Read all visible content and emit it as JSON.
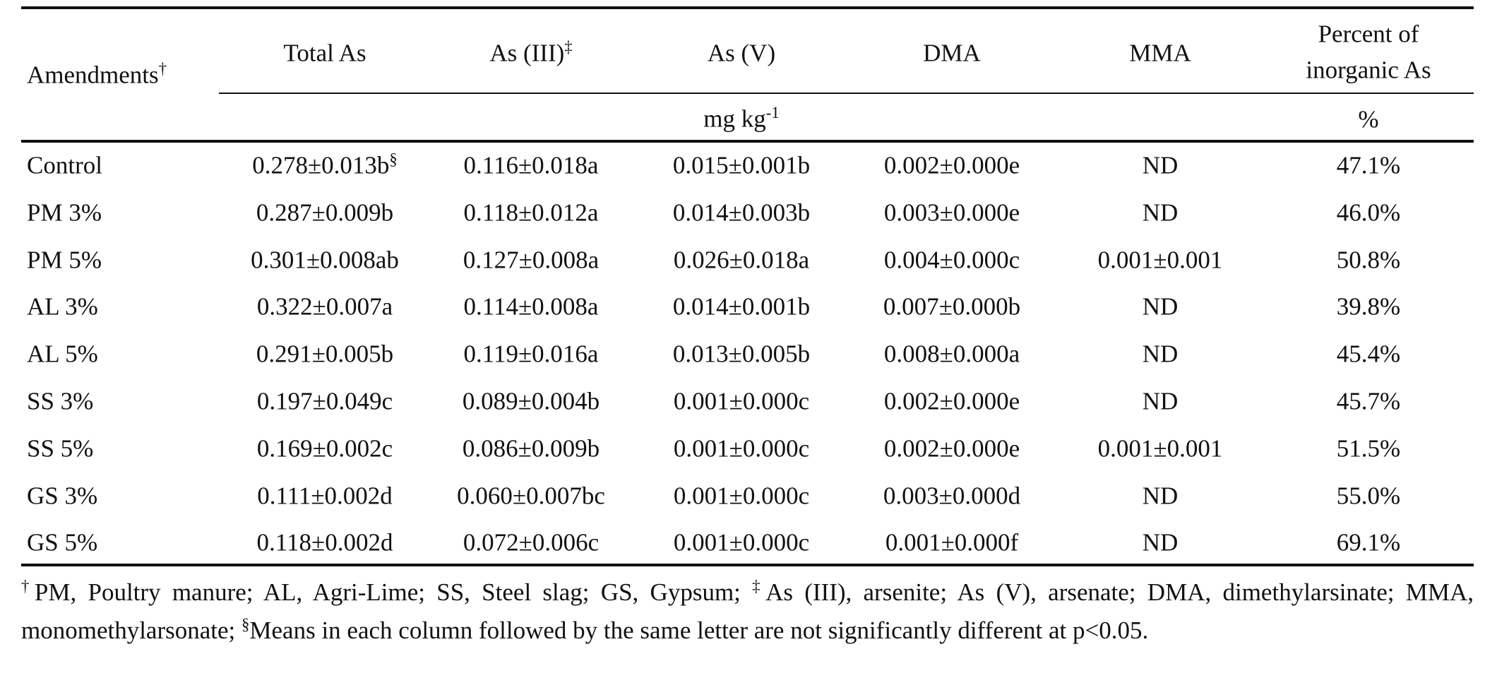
{
  "table": {
    "header": {
      "columns": [
        {
          "text": "Amendments",
          "sup": "†"
        },
        {
          "text": "Total As"
        },
        {
          "text": "As (III)",
          "sup": "‡"
        },
        {
          "text": "As (V)"
        },
        {
          "text": "DMA"
        },
        {
          "text": "MMA"
        },
        {
          "lines": [
            "Percent of",
            "inorganic As"
          ]
        }
      ],
      "units": {
        "text": "mg kg",
        "sup": "-1",
        "percent": "%"
      }
    },
    "rows": [
      [
        "Control",
        {
          "text": "0.278±0.013b",
          "sup": "§"
        },
        "0.116±0.018a",
        "0.015±0.001b",
        "0.002±0.000e",
        "ND",
        "47.1%"
      ],
      [
        "PM 3%",
        "0.287±0.009b",
        "0.118±0.012a",
        "0.014±0.003b",
        "0.003±0.000e",
        "ND",
        "46.0%"
      ],
      [
        "PM 5%",
        "0.301±0.008ab",
        "0.127±0.008a",
        "0.026±0.018a",
        "0.004±0.000c",
        "0.001±0.001",
        "50.8%"
      ],
      [
        "AL 3%",
        "0.322±0.007a",
        "0.114±0.008a",
        "0.014±0.001b",
        "0.007±0.000b",
        "ND",
        "39.8%"
      ],
      [
        "AL 5%",
        "0.291±0.005b",
        "0.119±0.016a",
        "0.013±0.005b",
        "0.008±0.000a",
        "ND",
        "45.4%"
      ],
      [
        "SS 3%",
        "0.197±0.049c",
        "0.089±0.004b",
        "0.001±0.000c",
        "0.002±0.000e",
        "ND",
        "45.7%"
      ],
      [
        "SS 5%",
        "0.169±0.002c",
        "0.086±0.009b",
        "0.001±0.000c",
        "0.002±0.000e",
        "0.001±0.001",
        "51.5%"
      ],
      [
        "GS 3%",
        "0.111±0.002d",
        "0.060±0.007bc",
        "0.001±0.000c",
        "0.003±0.000d",
        "ND",
        "55.0%"
      ],
      [
        "GS 5%",
        "0.118±0.002d",
        "0.072±0.006c",
        "0.001±0.000c",
        "0.001±0.000f",
        "ND",
        "69.1%"
      ]
    ],
    "footnote": [
      {
        "sup": "†",
        "text": "PM, Poultry manure; AL, Agri-Lime; SS, Steel slag; GS, Gypsum;  "
      },
      {
        "sup": "‡",
        "text": "As (III), arsenite; As (V), arsenate; DMA, dimethylarsinate; MMA, monomethylarsonate; "
      },
      {
        "sup": "§",
        "text": "Means in each column followed by the same letter are not significantly different at p<0.05."
      }
    ]
  }
}
